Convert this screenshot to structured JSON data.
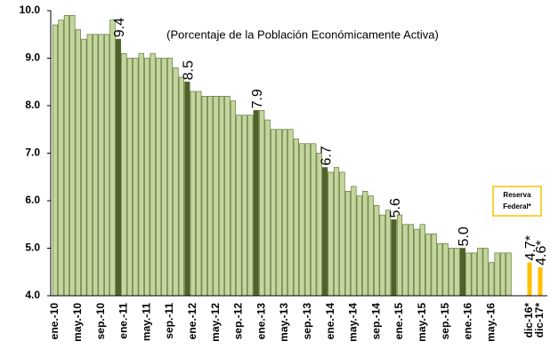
{
  "chart_data": {
    "type": "bar",
    "subtitle": "(Porcentaje de la Población Económicamente Activa)",
    "legend_box": [
      "Reserva",
      "Federal*"
    ],
    "categories": [
      "ene.-10",
      null,
      null,
      null,
      "may.-10",
      null,
      null,
      null,
      "sep.-10",
      null,
      null,
      null,
      "ene.-11",
      null,
      null,
      null,
      "may.-11",
      null,
      null,
      null,
      "sep.-11",
      null,
      null,
      null,
      "ene.-12",
      null,
      null,
      null,
      "may.-12",
      null,
      null,
      null,
      "sep.-12",
      null,
      null,
      null,
      "ene.-13",
      null,
      null,
      null,
      "may.-13",
      null,
      null,
      null,
      "sep.-13",
      null,
      null,
      null,
      "ene.-14",
      null,
      null,
      null,
      "may.-14",
      null,
      null,
      null,
      "sep.-14",
      null,
      null,
      null,
      "ene.-15",
      null,
      null,
      null,
      "may.-15",
      null,
      null,
      null,
      "sep.-15",
      null,
      null,
      null,
      "ene.-16",
      null,
      null,
      null,
      "may.-16",
      null,
      null,
      null,
      "dic-16*",
      "dic-17*"
    ],
    "values": [
      9.7,
      9.8,
      9.9,
      9.9,
      9.6,
      9.4,
      9.5,
      9.5,
      9.5,
      9.5,
      9.8,
      9.4,
      9.1,
      9.0,
      9.0,
      9.1,
      9.0,
      9.1,
      9.0,
      9.0,
      9.0,
      8.8,
      8.6,
      8.5,
      8.3,
      8.3,
      8.2,
      8.2,
      8.2,
      8.2,
      8.2,
      8.1,
      7.8,
      7.8,
      7.8,
      7.9,
      7.9,
      7.7,
      7.5,
      7.5,
      7.5,
      7.5,
      7.3,
      7.2,
      7.2,
      7.2,
      7.0,
      6.7,
      6.6,
      6.7,
      6.6,
      6.2,
      6.3,
      6.1,
      6.2,
      6.1,
      5.9,
      5.7,
      5.8,
      5.6,
      5.7,
      5.5,
      5.5,
      5.4,
      5.5,
      5.3,
      5.3,
      5.1,
      5.1,
      5.0,
      5.0,
      5.0,
      4.9,
      4.9,
      5.0,
      5.0,
      4.7,
      4.9,
      4.9,
      4.9,
      4.7,
      4.6
    ],
    "value_labels": [
      null,
      null,
      null,
      null,
      null,
      null,
      null,
      null,
      null,
      null,
      null,
      "9.4",
      null,
      null,
      null,
      null,
      null,
      null,
      null,
      null,
      null,
      null,
      null,
      "8.5",
      null,
      null,
      null,
      null,
      null,
      null,
      null,
      null,
      null,
      null,
      null,
      "7.9",
      null,
      null,
      null,
      null,
      null,
      null,
      null,
      null,
      null,
      null,
      null,
      "6.7",
      null,
      null,
      null,
      null,
      null,
      null,
      null,
      null,
      null,
      null,
      null,
      "5.6",
      null,
      null,
      null,
      null,
      null,
      null,
      null,
      null,
      null,
      null,
      null,
      "5.0",
      null,
      null,
      null,
      null,
      null,
      null,
      null,
      null,
      "4.7*",
      "4.6*"
    ],
    "colors": [
      "#c3d69b",
      "#c3d69b",
      "#c3d69b",
      "#c3d69b",
      "#c3d69b",
      "#c3d69b",
      "#c3d69b",
      "#c3d69b",
      "#c3d69b",
      "#c3d69b",
      "#c3d69b",
      "#4f6228",
      "#c3d69b",
      "#c3d69b",
      "#c3d69b",
      "#c3d69b",
      "#c3d69b",
      "#c3d69b",
      "#c3d69b",
      "#c3d69b",
      "#c3d69b",
      "#c3d69b",
      "#c3d69b",
      "#4f6228",
      "#c3d69b",
      "#c3d69b",
      "#c3d69b",
      "#c3d69b",
      "#c3d69b",
      "#c3d69b",
      "#c3d69b",
      "#c3d69b",
      "#c3d69b",
      "#c3d69b",
      "#c3d69b",
      "#4f6228",
      "#c3d69b",
      "#c3d69b",
      "#c3d69b",
      "#c3d69b",
      "#c3d69b",
      "#c3d69b",
      "#c3d69b",
      "#c3d69b",
      "#c3d69b",
      "#c3d69b",
      "#c3d69b",
      "#4f6228",
      "#c3d69b",
      "#c3d69b",
      "#c3d69b",
      "#c3d69b",
      "#c3d69b",
      "#c3d69b",
      "#c3d69b",
      "#c3d69b",
      "#c3d69b",
      "#c3d69b",
      "#c3d69b",
      "#4f6228",
      "#c3d69b",
      "#c3d69b",
      "#c3d69b",
      "#c3d69b",
      "#c3d69b",
      "#c3d69b",
      "#c3d69b",
      "#c3d69b",
      "#c3d69b",
      "#c3d69b",
      "#c3d69b",
      "#4f6228",
      "#c3d69b",
      "#c3d69b",
      "#c3d69b",
      "#c3d69b",
      "#c3d69b",
      "#c3d69b",
      "#c3d69b",
      "#c3d69b",
      "#ffc000",
      "#ffc000"
    ],
    "ylim": [
      4,
      10
    ],
    "yticks": [
      {
        "value": 4,
        "label": "4.0"
      },
      {
        "value": 5,
        "label": "5.0"
      },
      {
        "value": 6,
        "label": "6.0"
      },
      {
        "value": 7,
        "label": "7.0"
      },
      {
        "value": 8,
        "label": "8.0"
      },
      {
        "value": 9,
        "label": "9.0"
      },
      {
        "value": 10,
        "label": "10.0"
      }
    ]
  }
}
